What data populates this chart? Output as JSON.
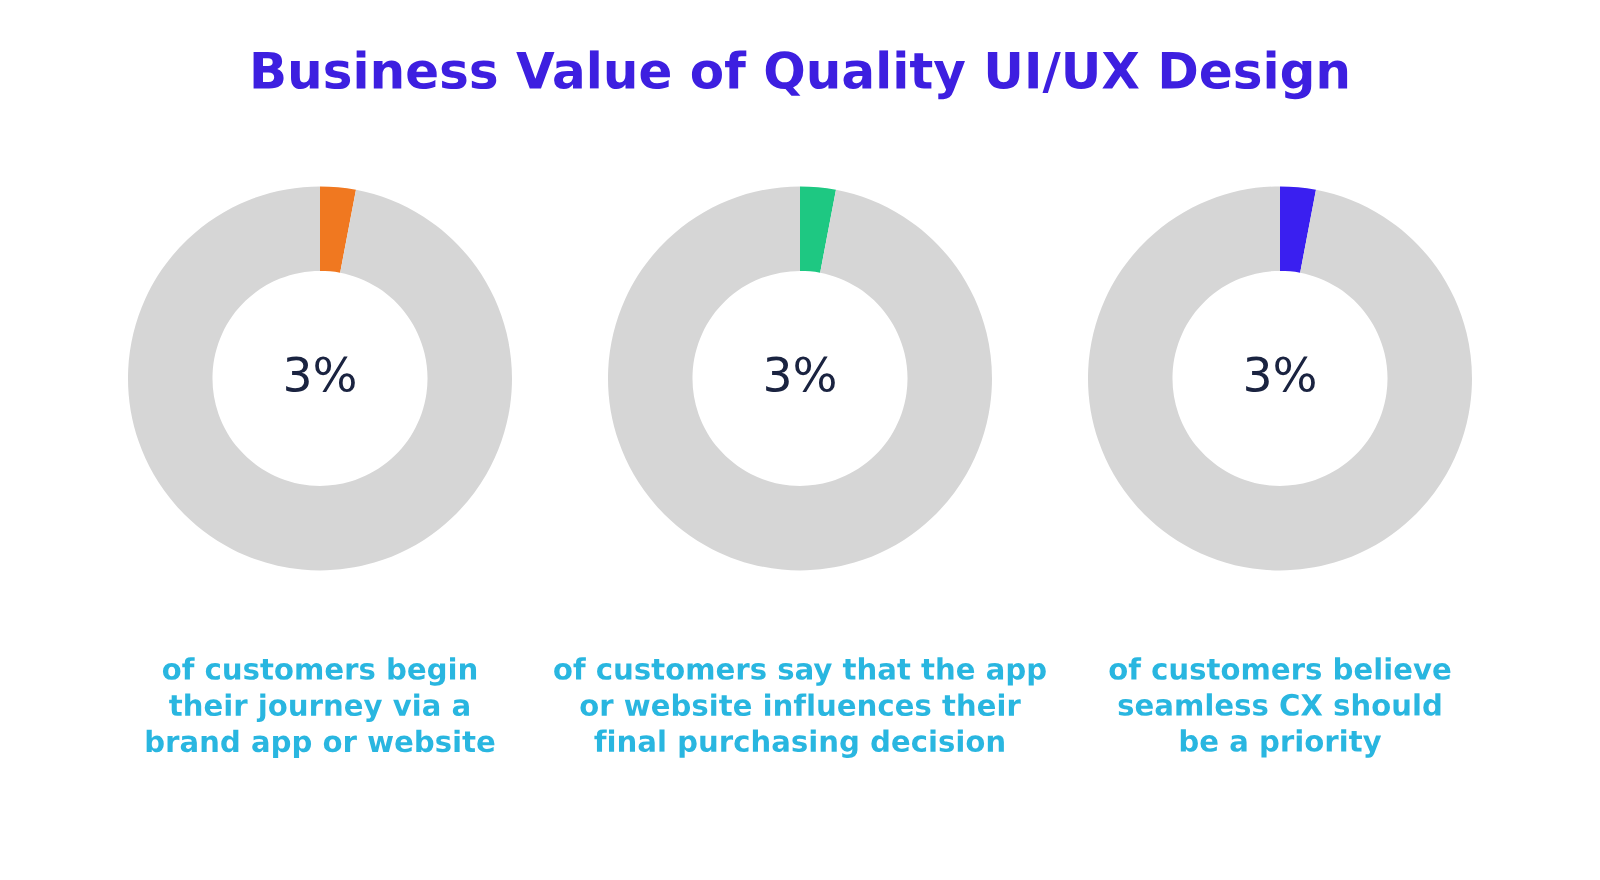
{
  "chart_data": [
    {
      "type": "donut",
      "title": "Business Value of Quality UI/UX Design",
      "categories": [
        null,
        null
      ],
      "values": [
        3,
        97
      ],
      "colors": [
        "#f07820",
        "#d6d6d6"
      ],
      "annotations": [
        "3%"
      ],
      "xlabel": "of customers begin\ntheir journey via a\nbrand app or website"
    },
    {
      "type": "donut",
      "categories": [
        null,
        null
      ],
      "values": [
        3,
        97
      ],
      "colors": [
        "#1ec882",
        "#d6d6d6"
      ],
      "annotations": [
        "3%"
      ],
      "xlabel": "of customers say that the app\nor website influences their\nfinal purchasing decision"
    },
    {
      "type": "donut",
      "categories": [
        null,
        null
      ],
      "values": [
        3,
        97
      ],
      "colors": [
        "#3a1ff0",
        "#d6d6d6"
      ],
      "annotations": [
        "3%"
      ],
      "xlabel": "of customers believe\nseamless CX should\nbe a priority"
    }
  ]
}
